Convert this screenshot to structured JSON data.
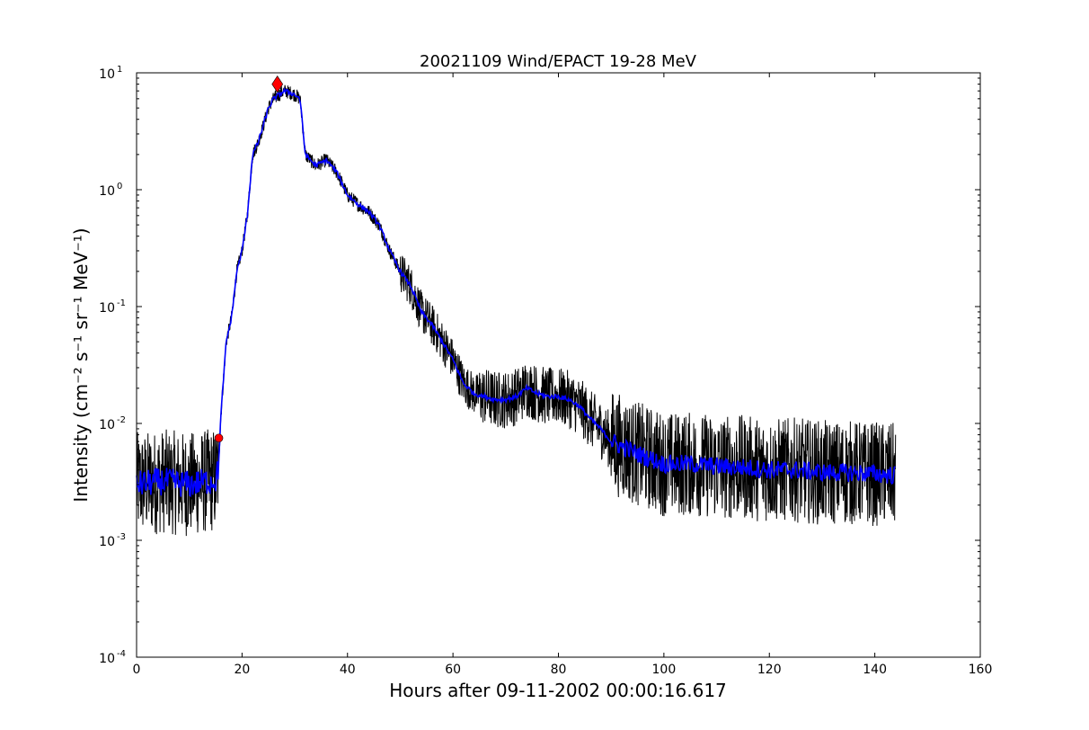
{
  "chart_data": {
    "type": "line",
    "title": "20021109 Wind/EPACT 19-28 MeV",
    "xlabel": "Hours after 09-11-2002 00:00:16.617",
    "ylabel": "Intensity (cm⁻² s⁻¹ sr⁻¹ MeV⁻¹)",
    "xlim": [
      0,
      160
    ],
    "ylim": [
      0.0001,
      10
    ],
    "yscale": "log",
    "grid": false,
    "legend": "none",
    "xticks": [
      "0",
      "20",
      "40",
      "60",
      "80",
      "100",
      "120",
      "140",
      "160"
    ],
    "xtick_values": [
      0,
      20,
      40,
      60,
      80,
      100,
      120,
      140,
      160
    ],
    "yticks": [
      {
        "value": 0.0001,
        "base": "10",
        "exp": "-4"
      },
      {
        "value": 0.001,
        "base": "10",
        "exp": "-3"
      },
      {
        "value": 0.01,
        "base": "10",
        "exp": "-2"
      },
      {
        "value": 0.1,
        "base": "10",
        "exp": "-1"
      },
      {
        "value": 1,
        "base": "10",
        "exp": "0"
      },
      {
        "value": 10,
        "base": "10",
        "exp": "1"
      }
    ],
    "series": [
      {
        "color": "#000000",
        "style": "raw, noisy",
        "x": [
          0,
          5,
          10,
          15,
          15.5,
          16,
          17,
          18,
          19,
          20,
          21,
          22,
          23,
          24,
          25,
          26,
          27,
          28,
          29,
          30,
          31,
          32,
          34,
          36,
          38,
          40,
          42,
          44,
          46,
          48,
          50,
          52,
          54,
          56,
          58,
          60,
          62,
          64,
          66,
          68,
          70,
          72,
          74,
          76,
          78,
          80,
          82,
          84,
          86,
          88,
          90,
          95,
          100,
          105,
          110,
          115,
          120,
          125,
          130,
          135,
          140,
          144
        ],
        "y": [
          0.003,
          0.0032,
          0.003,
          0.0033,
          0.004,
          0.012,
          0.05,
          0.08,
          0.2,
          0.3,
          0.6,
          2.0,
          2.5,
          3.5,
          5.0,
          6.0,
          6.5,
          7.0,
          6.8,
          6.5,
          6.0,
          2.0,
          1.6,
          1.8,
          1.4,
          0.9,
          0.75,
          0.65,
          0.5,
          0.3,
          0.2,
          0.15,
          0.09,
          0.07,
          0.05,
          0.035,
          0.022,
          0.018,
          0.017,
          0.016,
          0.016,
          0.017,
          0.02,
          0.018,
          0.017,
          0.017,
          0.016,
          0.014,
          0.011,
          0.009,
          0.007,
          0.0055,
          0.0045,
          0.0045,
          0.0043,
          0.0042,
          0.004,
          0.004,
          0.0038,
          0.0038,
          0.0037,
          0.0036
        ]
      },
      {
        "color": "#0000ff",
        "style": "smoothed",
        "x": [
          0,
          5,
          10,
          15,
          15.5,
          16,
          17,
          18,
          19,
          20,
          21,
          22,
          23,
          24,
          25,
          26,
          27,
          28,
          29,
          30,
          31,
          32,
          34,
          36,
          38,
          40,
          42,
          44,
          46,
          48,
          50,
          52,
          54,
          56,
          58,
          60,
          62,
          64,
          66,
          68,
          70,
          72,
          74,
          76,
          78,
          80,
          82,
          84,
          86,
          88,
          90,
          95,
          100,
          105,
          110,
          115,
          120,
          125,
          130,
          135,
          140,
          144
        ],
        "y": [
          0.003,
          0.0032,
          0.003,
          0.0033,
          0.004,
          0.012,
          0.05,
          0.08,
          0.2,
          0.3,
          0.6,
          2.0,
          2.5,
          3.5,
          5.0,
          6.0,
          6.5,
          7.0,
          6.8,
          6.5,
          6.0,
          2.0,
          1.6,
          1.8,
          1.4,
          0.9,
          0.75,
          0.65,
          0.5,
          0.3,
          0.2,
          0.15,
          0.09,
          0.07,
          0.05,
          0.035,
          0.022,
          0.018,
          0.017,
          0.016,
          0.016,
          0.017,
          0.02,
          0.018,
          0.017,
          0.017,
          0.016,
          0.014,
          0.011,
          0.009,
          0.007,
          0.0055,
          0.0045,
          0.0045,
          0.0043,
          0.0042,
          0.004,
          0.004,
          0.0038,
          0.0038,
          0.0037,
          0.0036
        ]
      }
    ],
    "markers": [
      {
        "name": "onset-marker",
        "shape": "circle",
        "color": "#ff0000",
        "x": 15.6,
        "y": 0.0075
      },
      {
        "name": "peak-marker",
        "shape": "diamond",
        "color": "#ff0000",
        "x": 26.7,
        "y": 8.0
      }
    ]
  }
}
